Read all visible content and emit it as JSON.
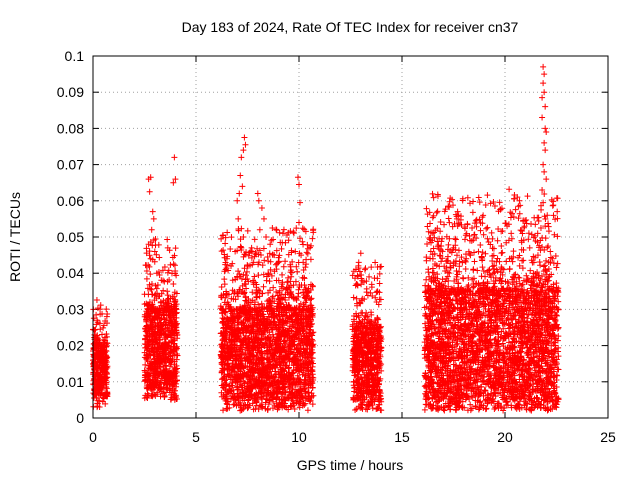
{
  "chart_data": {
    "type": "scatter",
    "title": "Day 183 of 2024, Rate Of TEC Index for receiver cn37",
    "xlabel": "GPS time / hours",
    "ylabel": "ROTI / TECUs",
    "xlim": [
      0,
      25
    ],
    "ylim": [
      0,
      0.1
    ],
    "x_ticks": [
      "0",
      "5",
      "10",
      "15",
      "20",
      "25"
    ],
    "y_ticks": [
      "0",
      "0.01",
      "0.02",
      "0.03",
      "0.04",
      "0.05",
      "0.06",
      "0.07",
      "0.08",
      "0.09",
      "0.1"
    ],
    "grid": true,
    "marker": "+",
    "color": "#ff0000",
    "clusters": [
      {
        "x_range": [
          0.0,
          0.7
        ],
        "y_typical": [
          0.006,
          0.02
        ]
      },
      {
        "x_range": [
          2.5,
          4.1
        ],
        "y_typical": [
          0.008,
          0.03
        ]
      },
      {
        "x_range": [
          6.2,
          10.7
        ],
        "y_typical": [
          0.005,
          0.03
        ]
      },
      {
        "x_range": [
          12.6,
          14.0
        ],
        "y_typical": [
          0.005,
          0.025
        ]
      },
      {
        "x_range": [
          16.1,
          22.6
        ],
        "y_typical": [
          0.005,
          0.035
        ]
      }
    ],
    "points": [
      [
        0.15,
        0.0285
      ],
      [
        0.35,
        0.0245
      ],
      [
        0.2,
        0.027
      ],
      [
        2.7,
        0.066
      ],
      [
        2.8,
        0.0665
      ],
      [
        2.75,
        0.0625
      ],
      [
        2.9,
        0.057
      ],
      [
        2.95,
        0.055
      ],
      [
        2.85,
        0.052
      ],
      [
        2.7,
        0.048
      ],
      [
        3.0,
        0.046
      ],
      [
        2.8,
        0.044
      ],
      [
        3.1,
        0.04
      ],
      [
        3.95,
        0.072
      ],
      [
        4.0,
        0.066
      ],
      [
        3.9,
        0.065
      ],
      [
        3.85,
        0.0335
      ],
      [
        3.9,
        0.037
      ],
      [
        3.6,
        0.035
      ],
      [
        3.4,
        0.038
      ],
      [
        7.35,
        0.0775
      ],
      [
        7.4,
        0.0755
      ],
      [
        7.3,
        0.074
      ],
      [
        7.2,
        0.072
      ],
      [
        7.15,
        0.067
      ],
      [
        7.25,
        0.064
      ],
      [
        7.1,
        0.062
      ],
      [
        7.0,
        0.06
      ],
      [
        7.05,
        0.055
      ],
      [
        7.3,
        0.05
      ],
      [
        7.2,
        0.047
      ],
      [
        6.9,
        0.046
      ],
      [
        6.5,
        0.044
      ],
      [
        6.7,
        0.042
      ],
      [
        8.0,
        0.062
      ],
      [
        8.05,
        0.06
      ],
      [
        8.2,
        0.058
      ],
      [
        8.3,
        0.055
      ],
      [
        8.1,
        0.052
      ],
      [
        8.4,
        0.05
      ],
      [
        8.6,
        0.048
      ],
      [
        8.8,
        0.045
      ],
      [
        9.0,
        0.043
      ],
      [
        7.7,
        0.047
      ],
      [
        7.8,
        0.043
      ],
      [
        8.5,
        0.04
      ],
      [
        9.95,
        0.0665
      ],
      [
        10.0,
        0.0645
      ],
      [
        10.05,
        0.0595
      ],
      [
        10.0,
        0.054
      ],
      [
        10.1,
        0.045
      ],
      [
        10.2,
        0.043
      ],
      [
        10.4,
        0.035
      ],
      [
        9.5,
        0.036
      ],
      [
        13.0,
        0.0455
      ],
      [
        12.9,
        0.043
      ],
      [
        13.2,
        0.041
      ],
      [
        13.4,
        0.039
      ],
      [
        13.8,
        0.035
      ],
      [
        12.8,
        0.037
      ],
      [
        16.8,
        0.0495
      ],
      [
        16.9,
        0.0475
      ],
      [
        17.3,
        0.0495
      ],
      [
        17.5,
        0.047
      ],
      [
        17.7,
        0.057
      ],
      [
        17.75,
        0.056
      ],
      [
        18.1,
        0.0505
      ],
      [
        18.4,
        0.0525
      ],
      [
        18.9,
        0.0555
      ],
      [
        18.3,
        0.049
      ],
      [
        16.4,
        0.046
      ],
      [
        16.5,
        0.044
      ],
      [
        20.2,
        0.0632
      ],
      [
        20.6,
        0.061
      ],
      [
        20.7,
        0.06
      ],
      [
        20.65,
        0.0585
      ],
      [
        20.1,
        0.053
      ],
      [
        20.3,
        0.051
      ],
      [
        20.8,
        0.049
      ],
      [
        21.2,
        0.047
      ],
      [
        20.4,
        0.0445
      ],
      [
        21.85,
        0.097
      ],
      [
        21.9,
        0.095
      ],
      [
        21.85,
        0.0925
      ],
      [
        21.9,
        0.09
      ],
      [
        21.8,
        0.0885
      ],
      [
        21.95,
        0.086
      ],
      [
        21.8,
        0.083
      ],
      [
        21.95,
        0.08
      ],
      [
        22.0,
        0.079
      ],
      [
        21.9,
        0.076
      ],
      [
        21.95,
        0.074
      ],
      [
        21.85,
        0.07
      ],
      [
        21.9,
        0.068
      ],
      [
        22.0,
        0.066
      ],
      [
        21.8,
        0.063
      ],
      [
        21.85,
        0.0595
      ],
      [
        21.75,
        0.0575
      ],
      [
        22.05,
        0.056
      ],
      [
        21.95,
        0.053
      ],
      [
        22.2,
        0.046
      ],
      [
        22.3,
        0.044
      ],
      [
        21.6,
        0.045
      ],
      [
        21.4,
        0.043
      ],
      [
        12.8,
        0.0025
      ],
      [
        18.8,
        0.003
      ],
      [
        20.3,
        0.0035
      ],
      [
        21.3,
        0.003
      ],
      [
        9.0,
        0.0035
      ],
      [
        7.6,
        0.0035
      ]
    ]
  }
}
